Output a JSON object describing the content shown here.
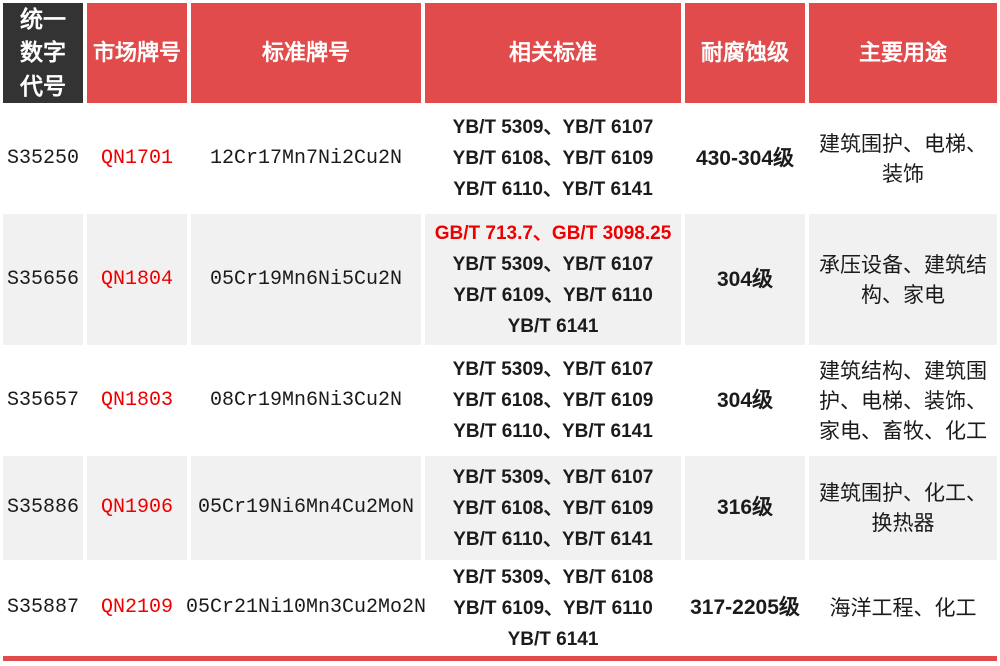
{
  "colors": {
    "header_red": "#E14B4B",
    "header_dark": "#333333",
    "row_alt_gray": "#F1F1F1",
    "accent_red_text": "#EE0000"
  },
  "table": {
    "headers": [
      "统一数字代号",
      "市场牌号",
      "标准牌号",
      "相关标准",
      "耐腐蚀级",
      "主要用途"
    ],
    "rows": [
      {
        "code": "S35250",
        "market_grade": "QN1701",
        "standard_grade": "12Cr17Mn7Ni2Cu2N",
        "standards_lines": [
          "YB/T 5309、YB/T 6107",
          "YB/T 6108、YB/T 6109",
          "YB/T 6110、YB/T 6141"
        ],
        "corrosion_level": "430-304级",
        "uses_lines": [
          "建筑围护、电梯、",
          "装饰"
        ]
      },
      {
        "code": "S35656",
        "market_grade": "QN1804",
        "standard_grade": "05Cr19Mn6Ni5Cu2N",
        "standards_lines": [
          "GB/T 713.7、GB/T 3098.25",
          "YB/T 5309、YB/T 6107",
          "YB/T 6109、YB/T 6110",
          "YB/T 6141"
        ],
        "corrosion_level": "304级",
        "uses_lines": [
          "承压设备、建筑结",
          "构、家电"
        ]
      },
      {
        "code": "S35657",
        "market_grade": "QN1803",
        "standard_grade": "08Cr19Mn6Ni3Cu2N",
        "standards_lines": [
          "YB/T 5309、YB/T 6107",
          "YB/T 6108、YB/T 6109",
          "YB/T 6110、YB/T 6141"
        ],
        "corrosion_level": "304级",
        "uses_lines": [
          "建筑结构、建筑围",
          "护、电梯、装饰、",
          "家电、畜牧、化工"
        ]
      },
      {
        "code": "S35886",
        "market_grade": "QN1906",
        "standard_grade": "05Cr19Ni6Mn4Cu2MoN",
        "standards_lines": [
          "YB/T 5309、YB/T 6107",
          "YB/T 6108、YB/T 6109",
          "YB/T 6110、YB/T 6141"
        ],
        "corrosion_level": "316级",
        "uses_lines": [
          "建筑围护、化工、",
          "换热器"
        ]
      },
      {
        "code": "S35887",
        "market_grade": "QN2109",
        "standard_grade": "05Cr21Ni10Mn3Cu2Mo2N",
        "standards_lines": [
          "YB/T 5309、YB/T 6108",
          "YB/T 6109、YB/T 6110",
          "YB/T 6141"
        ],
        "corrosion_level": "317-2205级",
        "uses_lines": [
          "海洋工程、化工"
        ]
      }
    ]
  }
}
